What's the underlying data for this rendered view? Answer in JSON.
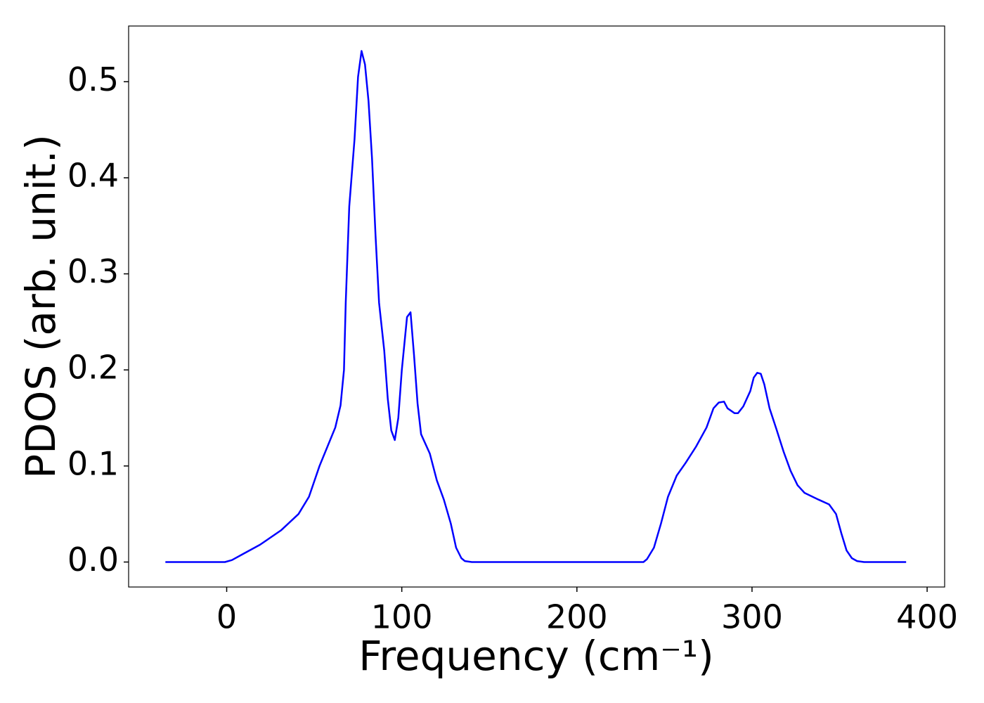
{
  "chart_data": {
    "type": "line",
    "xlabel": "Frequency (cm⁻¹)",
    "ylabel": "PDOS (arb. unit.)",
    "xlim": [
      -56,
      410
    ],
    "ylim": [
      -0.026,
      0.558
    ],
    "xticks": [
      0,
      100,
      200,
      300,
      400
    ],
    "yticks": [
      {
        "value": 0,
        "label": "0.0"
      },
      0.1,
      0.2,
      0.3,
      0.4,
      0.5
    ],
    "series": [
      {
        "color": "#0000ff",
        "x": [
          -35,
          -1,
          3,
          9,
          19,
          31,
          41,
          47,
          53,
          62,
          65,
          67,
          68,
          70,
          73,
          75,
          77,
          79,
          81,
          83,
          85,
          87,
          90,
          92,
          94,
          96,
          98,
          100,
          103,
          105,
          107,
          109,
          111,
          116,
          120,
          124,
          128,
          131,
          134,
          136,
          140,
          238,
          240,
          244,
          248,
          252,
          257,
          262,
          268,
          274,
          278,
          281,
          284,
          286,
          290,
          292,
          295,
          299,
          301,
          303,
          305,
          307,
          310,
          314,
          318,
          322,
          326,
          330,
          338,
          344,
          348,
          351,
          354,
          357,
          360,
          364,
          388
        ],
        "values": [
          0,
          0,
          0.002,
          0.008,
          0.018,
          0.033,
          0.05,
          0.068,
          0.1,
          0.14,
          0.163,
          0.2,
          0.27,
          0.37,
          0.44,
          0.505,
          0.532,
          0.518,
          0.48,
          0.42,
          0.34,
          0.27,
          0.22,
          0.17,
          0.137,
          0.127,
          0.15,
          0.2,
          0.255,
          0.26,
          0.215,
          0.165,
          0.133,
          0.113,
          0.085,
          0.065,
          0.04,
          0.015,
          0.004,
          0.001,
          0,
          0,
          0.003,
          0.015,
          0.04,
          0.068,
          0.09,
          0.103,
          0.12,
          0.14,
          0.16,
          0.166,
          0.167,
          0.16,
          0.155,
          0.155,
          0.162,
          0.178,
          0.192,
          0.197,
          0.196,
          0.185,
          0.16,
          0.138,
          0.115,
          0.095,
          0.08,
          0.072,
          0.065,
          0.06,
          0.05,
          0.03,
          0.012,
          0.004,
          0.001,
          0,
          0
        ]
      }
    ]
  }
}
